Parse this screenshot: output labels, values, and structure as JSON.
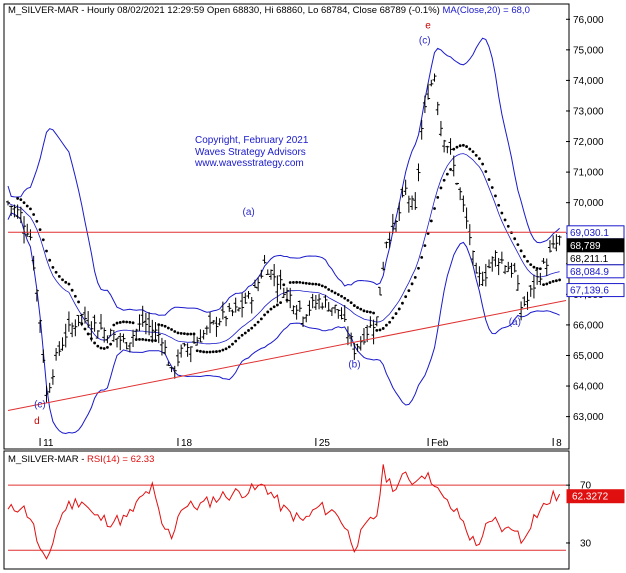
{
  "header": {
    "symbol": "M_SILVER-MAR",
    "ohlc_text": " - Hourly 08/02/2021 12:29:59 Open 68830, Hi 68860, Lo 68784, Close 68789 (-0.1%)",
    "ma_text": " MA(Close,20) = 68,0"
  },
  "watermark": {
    "line1": "Copyright, February 2021",
    "line2": "Waves Strategy Advisors",
    "line3": "www.wavesstrategy.com"
  },
  "colors": {
    "price": "#000000",
    "bands": "#1a1acc",
    "lines": "#e03030",
    "rsi": "#e01010",
    "wave_label_blue": "#2a2acc",
    "wave_label_red": "#cc0000"
  },
  "chart_data": [
    {
      "type": "candlestick",
      "title": "M_SILVER-MAR - Hourly",
      "ylim": [
        62300,
        76500
      ],
      "y_ticks": [
        63000,
        64000,
        65000,
        66000,
        67000,
        68000,
        69000,
        70000,
        71000,
        72000,
        73000,
        74000,
        75000,
        76000
      ],
      "y_tick_labels": [
        "63,000",
        "64,000",
        "65,000",
        "66,000",
        "67,000",
        "68,000",
        "69,000",
        "70,000",
        "71,000",
        "72,000",
        "73,000",
        "74,000",
        "75,000",
        "76,000"
      ],
      "x_labels": [
        {
          "label": "11",
          "bar": 10
        },
        {
          "label": "18",
          "bar": 53
        },
        {
          "label": "25",
          "bar": 96
        },
        {
          "label": "Feb",
          "bar": 131
        },
        {
          "label": "8",
          "bar": 170
        }
      ],
      "bar_count": 175,
      "price_path": [
        {
          "bar": 0,
          "close": 70000
        },
        {
          "bar": 4,
          "close": 69600
        },
        {
          "bar": 7,
          "close": 68900
        },
        {
          "bar": 10,
          "close": 66200
        },
        {
          "bar": 12,
          "close": 63700
        },
        {
          "bar": 15,
          "close": 64900
        },
        {
          "bar": 18,
          "close": 65700
        },
        {
          "bar": 23,
          "close": 66300
        },
        {
          "bar": 27,
          "close": 66000
        },
        {
          "bar": 32,
          "close": 65700
        },
        {
          "bar": 37,
          "close": 65400
        },
        {
          "bar": 42,
          "close": 66100
        },
        {
          "bar": 48,
          "close": 65600
        },
        {
          "bar": 51,
          "close": 64400
        },
        {
          "bar": 54,
          "close": 65100
        },
        {
          "bar": 60,
          "close": 65600
        },
        {
          "bar": 66,
          "close": 66200
        },
        {
          "bar": 72,
          "close": 66500
        },
        {
          "bar": 77,
          "close": 67100
        },
        {
          "bar": 80,
          "close": 68000
        },
        {
          "bar": 86,
          "close": 67200
        },
        {
          "bar": 92,
          "close": 66400
        },
        {
          "bar": 97,
          "close": 66800
        },
        {
          "bar": 103,
          "close": 66500
        },
        {
          "bar": 108,
          "close": 65200
        },
        {
          "bar": 112,
          "close": 65800
        },
        {
          "bar": 115,
          "close": 66200
        },
        {
          "bar": 118,
          "close": 68800
        },
        {
          "bar": 121,
          "close": 69300
        },
        {
          "bar": 124,
          "close": 70400
        },
        {
          "bar": 127,
          "close": 69700
        },
        {
          "bar": 129,
          "close": 72400
        },
        {
          "bar": 131,
          "close": 73600
        },
        {
          "bar": 133,
          "close": 74200
        },
        {
          "bar": 135,
          "close": 72500
        },
        {
          "bar": 138,
          "close": 71600
        },
        {
          "bar": 141,
          "close": 70300
        },
        {
          "bar": 144,
          "close": 68900
        },
        {
          "bar": 146,
          "close": 67500
        },
        {
          "bar": 149,
          "close": 67700
        },
        {
          "bar": 152,
          "close": 68300
        },
        {
          "bar": 155,
          "close": 68000
        },
        {
          "bar": 158,
          "close": 67700
        },
        {
          "bar": 160,
          "close": 66600
        },
        {
          "bar": 162,
          "close": 66800
        },
        {
          "bar": 164,
          "close": 67300
        },
        {
          "bar": 167,
          "close": 67900
        },
        {
          "bar": 170,
          "close": 68500
        },
        {
          "bar": 172,
          "close": 68789
        }
      ],
      "price_labels": [
        {
          "value": "69,030.1",
          "price": 69030,
          "bg": "#ffffff",
          "fg": "#1a1acc",
          "border": "#1a1acc"
        },
        {
          "value": "68,789",
          "price": 68789,
          "bg": "#000000",
          "fg": "#ffffff",
          "border": "#000000"
        },
        {
          "value": "68,211.1",
          "price": 68211,
          "bg": "#ffffff",
          "fg": "#000000",
          "border": "#000000"
        },
        {
          "value": "68,084.9",
          "price": 68085,
          "bg": "#ffffff",
          "fg": "#1a1acc",
          "border": "#1a1acc"
        },
        {
          "value": "67,139.6",
          "price": 67140,
          "bg": "#ffffff",
          "fg": "#1a1acc",
          "border": "#1a1acc"
        }
      ],
      "horizontal_line": {
        "price": 69030
      },
      "trend_line": [
        {
          "bar": 0,
          "price": 63200
        },
        {
          "bar": 175,
          "price": 66800
        }
      ],
      "wave_labels": [
        {
          "text": "(c)",
          "bar": 10,
          "price": 63300,
          "color": "#2a2acc"
        },
        {
          "text": "d",
          "bar": 10,
          "price": 62750,
          "color": "#cc0000"
        },
        {
          "text": "(a)",
          "bar": 75,
          "price": 69600,
          "color": "#2a2acc"
        },
        {
          "text": "(b)",
          "bar": 108,
          "price": 64600,
          "color": "#2a2acc"
        },
        {
          "text": "(c)",
          "bar": 130,
          "price": 75200,
          "color": "#2a2acc"
        },
        {
          "text": "e",
          "bar": 132,
          "price": 75700,
          "color": "#cc0000"
        },
        {
          "text": "(a)",
          "bar": 158,
          "price": 66000,
          "color": "#2a2acc"
        }
      ]
    },
    {
      "type": "line",
      "title": "M_SILVER-MAR - RSI(14) = 62.33",
      "ylim": [
        12,
        86
      ],
      "y_ticks": [
        30,
        70
      ],
      "y_tick_labels": [
        "30",
        "70"
      ],
      "lines": [
        70,
        25
      ],
      "current_label": "62.3272",
      "rsi_path": [
        {
          "bar": 0,
          "rsi": 52
        },
        {
          "bar": 4,
          "rsi": 56
        },
        {
          "bar": 7,
          "rsi": 48
        },
        {
          "bar": 10,
          "rsi": 25
        },
        {
          "bar": 12,
          "rsi": 15
        },
        {
          "bar": 15,
          "rsi": 40
        },
        {
          "bar": 18,
          "rsi": 55
        },
        {
          "bar": 23,
          "rsi": 60
        },
        {
          "bar": 27,
          "rsi": 48
        },
        {
          "bar": 32,
          "rsi": 45
        },
        {
          "bar": 37,
          "rsi": 47
        },
        {
          "bar": 42,
          "rsi": 62
        },
        {
          "bar": 45,
          "rsi": 68
        },
        {
          "bar": 48,
          "rsi": 42
        },
        {
          "bar": 51,
          "rsi": 35
        },
        {
          "bar": 54,
          "rsi": 55
        },
        {
          "bar": 60,
          "rsi": 56
        },
        {
          "bar": 66,
          "rsi": 62
        },
        {
          "bar": 72,
          "rsi": 65
        },
        {
          "bar": 77,
          "rsi": 67
        },
        {
          "bar": 80,
          "rsi": 70
        },
        {
          "bar": 86,
          "rsi": 53
        },
        {
          "bar": 92,
          "rsi": 45
        },
        {
          "bar": 97,
          "rsi": 55
        },
        {
          "bar": 103,
          "rsi": 50
        },
        {
          "bar": 108,
          "rsi": 28
        },
        {
          "bar": 112,
          "rsi": 42
        },
        {
          "bar": 115,
          "rsi": 50
        },
        {
          "bar": 117,
          "rsi": 80
        },
        {
          "bar": 119,
          "rsi": 72
        },
        {
          "bar": 121,
          "rsi": 68
        },
        {
          "bar": 124,
          "rsi": 77
        },
        {
          "bar": 127,
          "rsi": 72
        },
        {
          "bar": 129,
          "rsi": 80
        },
        {
          "bar": 131,
          "rsi": 75
        },
        {
          "bar": 133,
          "rsi": 73
        },
        {
          "bar": 135,
          "rsi": 62
        },
        {
          "bar": 138,
          "rsi": 55
        },
        {
          "bar": 141,
          "rsi": 48
        },
        {
          "bar": 144,
          "rsi": 35
        },
        {
          "bar": 146,
          "rsi": 28
        },
        {
          "bar": 149,
          "rsi": 40
        },
        {
          "bar": 152,
          "rsi": 45
        },
        {
          "bar": 155,
          "rsi": 38
        },
        {
          "bar": 158,
          "rsi": 42
        },
        {
          "bar": 160,
          "rsi": 30
        },
        {
          "bar": 162,
          "rsi": 40
        },
        {
          "bar": 164,
          "rsi": 48
        },
        {
          "bar": 167,
          "rsi": 55
        },
        {
          "bar": 170,
          "rsi": 62
        },
        {
          "bar": 172,
          "rsi": 62.33
        }
      ]
    }
  ]
}
